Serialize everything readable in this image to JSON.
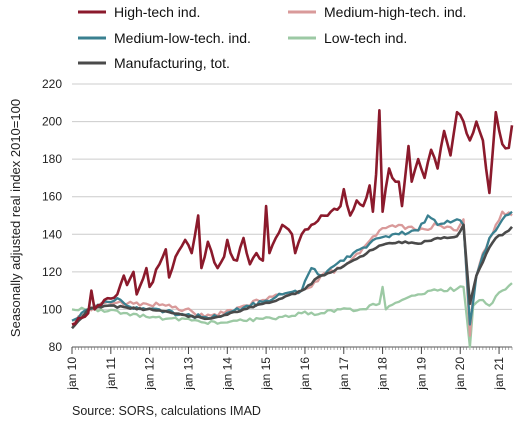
{
  "chart_data": {
    "type": "line",
    "ylabel": "Seasonally adjusted real index 2010=100",
    "xlabel": "",
    "ylim": [
      80,
      220
    ],
    "yticks": [
      80,
      100,
      120,
      140,
      160,
      180,
      200,
      220
    ],
    "xticks": [
      "jan 10",
      "jan 11",
      "jan 12",
      "jan 13",
      "jan 14",
      "jan 15",
      "jan 16",
      "jan 17",
      "jan 18",
      "jan 19",
      "jan 20",
      "jan 21"
    ],
    "x_start": "2010-01",
    "x_end": "2021-05",
    "source": "Source: SORS, calculations IMAD",
    "legend_position": "top",
    "series": [
      {
        "name": "High-tech ind.",
        "color": "#8b1a2c",
        "anchors": [
          [
            "2010-01",
            92
          ],
          [
            "2010-06",
            98
          ],
          [
            "2010-07",
            110
          ],
          [
            "2010-08",
            100
          ],
          [
            "2010-12",
            106
          ],
          [
            "2011-03",
            108
          ],
          [
            "2011-05",
            118
          ],
          [
            "2011-06",
            113
          ],
          [
            "2011-08",
            120
          ],
          [
            "2011-09",
            108
          ],
          [
            "2011-12",
            122
          ],
          [
            "2012-01",
            112
          ],
          [
            "2012-04",
            124
          ],
          [
            "2012-06",
            132
          ],
          [
            "2012-07",
            117
          ],
          [
            "2012-09",
            128
          ],
          [
            "2012-12",
            137
          ],
          [
            "2013-02",
            130
          ],
          [
            "2013-04",
            150
          ],
          [
            "2013-05",
            122
          ],
          [
            "2013-07",
            136
          ],
          [
            "2013-09",
            125
          ],
          [
            "2013-10",
            122
          ],
          [
            "2013-12",
            128
          ],
          [
            "2014-01",
            137
          ],
          [
            "2014-02",
            130
          ],
          [
            "2014-04",
            126
          ],
          [
            "2014-06",
            138
          ],
          [
            "2014-08",
            124
          ],
          [
            "2014-10",
            130
          ],
          [
            "2014-12",
            126
          ],
          [
            "2015-01",
            155
          ],
          [
            "2015-02",
            130
          ],
          [
            "2015-04",
            138
          ],
          [
            "2015-06",
            145
          ],
          [
            "2015-09",
            140
          ],
          [
            "2015-10",
            130
          ],
          [
            "2015-12",
            140
          ],
          [
            "2016-03",
            145
          ],
          [
            "2016-06",
            150
          ],
          [
            "2016-09",
            152
          ],
          [
            "2016-12",
            155
          ],
          [
            "2017-01",
            164
          ],
          [
            "2017-03",
            150
          ],
          [
            "2017-05",
            158
          ],
          [
            "2017-07",
            155
          ],
          [
            "2017-09",
            166
          ],
          [
            "2017-10",
            152
          ],
          [
            "2017-11",
            172
          ],
          [
            "2017-12",
            206
          ],
          [
            "2018-01",
            152
          ],
          [
            "2018-03",
            175
          ],
          [
            "2018-05",
            168
          ],
          [
            "2018-06",
            168
          ],
          [
            "2018-07",
            155
          ],
          [
            "2018-09",
            187
          ],
          [
            "2018-10",
            168
          ],
          [
            "2018-12",
            180
          ],
          [
            "2019-02",
            170
          ],
          [
            "2019-04",
            185
          ],
          [
            "2019-06",
            175
          ],
          [
            "2019-08",
            195
          ],
          [
            "2019-10",
            182
          ],
          [
            "2019-12",
            205
          ],
          [
            "2020-02",
            200
          ],
          [
            "2020-04",
            190
          ],
          [
            "2020-06",
            200
          ],
          [
            "2020-08",
            190
          ],
          [
            "2020-10",
            162
          ],
          [
            "2020-12",
            205
          ],
          [
            "2021-02",
            188
          ],
          [
            "2021-04",
            186
          ],
          [
            "2021-05",
            198
          ]
        ]
      },
      {
        "name": "Medium-high-tech. ind.",
        "color": "#d99a9a",
        "anchors": [
          [
            "2010-01",
            92
          ],
          [
            "2010-06",
            100
          ],
          [
            "2010-12",
            104
          ],
          [
            "2011-06",
            103
          ],
          [
            "2011-12",
            103
          ],
          [
            "2012-06",
            102
          ],
          [
            "2012-12",
            100
          ],
          [
            "2013-06",
            96
          ],
          [
            "2013-12",
            98
          ],
          [
            "2014-06",
            102
          ],
          [
            "2014-12",
            105
          ],
          [
            "2015-06",
            108
          ],
          [
            "2015-12",
            110
          ],
          [
            "2016-03",
            112
          ],
          [
            "2016-06",
            118
          ],
          [
            "2016-12",
            122
          ],
          [
            "2017-06",
            130
          ],
          [
            "2017-12",
            142
          ],
          [
            "2018-06",
            145
          ],
          [
            "2018-12",
            142
          ],
          [
            "2019-06",
            145
          ],
          [
            "2019-12",
            142
          ],
          [
            "2020-02",
            148
          ],
          [
            "2020-04",
            86
          ],
          [
            "2020-05",
            110
          ],
          [
            "2020-08",
            130
          ],
          [
            "2020-12",
            145
          ],
          [
            "2021-02",
            152
          ],
          [
            "2021-05",
            150
          ]
        ]
      },
      {
        "name": "Medium-low-tech. ind.",
        "color": "#3a8090",
        "anchors": [
          [
            "2010-01",
            94
          ],
          [
            "2010-06",
            100
          ],
          [
            "2010-12",
            104
          ],
          [
            "2011-03",
            106
          ],
          [
            "2011-06",
            102
          ],
          [
            "2011-12",
            100
          ],
          [
            "2012-06",
            99
          ],
          [
            "2012-12",
            97
          ],
          [
            "2013-06",
            96
          ],
          [
            "2013-12",
            97
          ],
          [
            "2014-06",
            101
          ],
          [
            "2014-12",
            104
          ],
          [
            "2015-06",
            108
          ],
          [
            "2015-12",
            110
          ],
          [
            "2016-03",
            122
          ],
          [
            "2016-06",
            118
          ],
          [
            "2016-12",
            126
          ],
          [
            "2017-06",
            132
          ],
          [
            "2017-12",
            138
          ],
          [
            "2018-06",
            140
          ],
          [
            "2018-12",
            142
          ],
          [
            "2019-03",
            150
          ],
          [
            "2019-06",
            145
          ],
          [
            "2019-12",
            148
          ],
          [
            "2020-02",
            145
          ],
          [
            "2020-04",
            92
          ],
          [
            "2020-06",
            118
          ],
          [
            "2020-10",
            138
          ],
          [
            "2021-01",
            145
          ],
          [
            "2021-03",
            150
          ],
          [
            "2021-05",
            152
          ]
        ]
      },
      {
        "name": "Low-tech ind.",
        "color": "#9cc9a4",
        "anchors": [
          [
            "2010-01",
            100
          ],
          [
            "2010-06",
            100
          ],
          [
            "2010-12",
            99
          ],
          [
            "2011-06",
            98
          ],
          [
            "2011-12",
            96
          ],
          [
            "2012-06",
            95
          ],
          [
            "2012-12",
            95
          ],
          [
            "2013-06",
            93
          ],
          [
            "2013-12",
            93
          ],
          [
            "2014-06",
            94
          ],
          [
            "2014-12",
            95
          ],
          [
            "2015-06",
            96
          ],
          [
            "2015-12",
            98
          ],
          [
            "2016-06",
            98
          ],
          [
            "2016-12",
            100
          ],
          [
            "2017-06",
            100
          ],
          [
            "2017-12",
            103
          ],
          [
            "2018-01",
            112
          ],
          [
            "2018-02",
            100
          ],
          [
            "2018-06",
            104
          ],
          [
            "2018-12",
            108
          ],
          [
            "2019-06",
            110
          ],
          [
            "2019-12",
            111
          ],
          [
            "2020-02",
            112
          ],
          [
            "2020-04",
            80
          ],
          [
            "2020-05",
            102
          ],
          [
            "2020-08",
            105
          ],
          [
            "2020-10",
            102
          ],
          [
            "2020-12",
            107
          ],
          [
            "2021-02",
            110
          ],
          [
            "2021-05",
            114
          ]
        ]
      },
      {
        "name": "Manufacturing, tot.",
        "color": "#4a4a4a",
        "anchors": [
          [
            "2010-01",
            90
          ],
          [
            "2010-06",
            100
          ],
          [
            "2010-12",
            102
          ],
          [
            "2011-06",
            101
          ],
          [
            "2011-12",
            100
          ],
          [
            "2012-06",
            99
          ],
          [
            "2012-12",
            97
          ],
          [
            "2013-06",
            95
          ],
          [
            "2013-12",
            97
          ],
          [
            "2014-06",
            100
          ],
          [
            "2014-12",
            103
          ],
          [
            "2015-06",
            106
          ],
          [
            "2015-12",
            110
          ],
          [
            "2016-06",
            118
          ],
          [
            "2016-12",
            122
          ],
          [
            "2017-06",
            128
          ],
          [
            "2017-12",
            134
          ],
          [
            "2018-06",
            136
          ],
          [
            "2018-12",
            135
          ],
          [
            "2019-06",
            138
          ],
          [
            "2019-12",
            139
          ],
          [
            "2020-02",
            145
          ],
          [
            "2020-04",
            103
          ],
          [
            "2020-06",
            118
          ],
          [
            "2020-10",
            133
          ],
          [
            "2020-12",
            138
          ],
          [
            "2021-03",
            141
          ],
          [
            "2021-05",
            144
          ]
        ]
      }
    ]
  }
}
